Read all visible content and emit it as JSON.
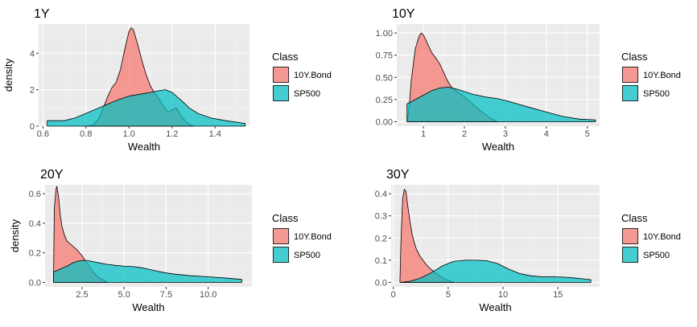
{
  "colors": {
    "panel_bg": "#EBEBEB",
    "grid_major": "#FFFFFF",
    "grid_minor": "#F5F5F5",
    "bond": "#F8766D",
    "sp500": "#00BFC4",
    "outline": "#000000",
    "text": "#000000",
    "tick_text": "#4D4D4D"
  },
  "chart_data": [
    {
      "type": "area",
      "title": "1Y",
      "xlabel": "Wealth",
      "ylabel": "density",
      "xlim": [
        0.58,
        1.56
      ],
      "ylim": [
        0,
        5.6
      ],
      "xticks": [
        0.6,
        0.8,
        1.0,
        1.2,
        1.4
      ],
      "xtick_labels": [
        "0.6",
        "0.8",
        "1.0",
        "1.2",
        "1.4"
      ],
      "yticks": [
        0,
        2,
        4
      ],
      "ytick_labels": [
        "0",
        "2",
        "4"
      ],
      "legend": {
        "title": "Class",
        "entries": [
          "10Y.Bond",
          "SP500"
        ],
        "position": "right"
      },
      "series": [
        {
          "name": "10Y.Bond",
          "color": "#F8766D",
          "points": [
            [
              0.8,
              0.0
            ],
            [
              0.83,
              0.05
            ],
            [
              0.86,
              0.4
            ],
            [
              0.88,
              1.0
            ],
            [
              0.9,
              1.6
            ],
            [
              0.92,
              2.1
            ],
            [
              0.94,
              2.4
            ],
            [
              0.96,
              3.1
            ],
            [
              0.98,
              4.2
            ],
            [
              1.0,
              5.2
            ],
            [
              1.01,
              5.4
            ],
            [
              1.02,
              5.3
            ],
            [
              1.04,
              4.5
            ],
            [
              1.06,
              3.6
            ],
            [
              1.08,
              2.8
            ],
            [
              1.1,
              2.2
            ],
            [
              1.12,
              1.8
            ],
            [
              1.14,
              1.5
            ],
            [
              1.16,
              1.1
            ],
            [
              1.18,
              0.75
            ],
            [
              1.2,
              0.9
            ],
            [
              1.22,
              1.0
            ],
            [
              1.24,
              0.6
            ],
            [
              1.26,
              0.3
            ],
            [
              1.28,
              0.1
            ],
            [
              1.3,
              0.0
            ]
          ]
        },
        {
          "name": "SP500",
          "color": "#00BFC4",
          "points": [
            [
              0.62,
              0.3
            ],
            [
              0.7,
              0.3
            ],
            [
              0.75,
              0.45
            ],
            [
              0.8,
              0.7
            ],
            [
              0.85,
              0.95
            ],
            [
              0.9,
              1.2
            ],
            [
              0.95,
              1.45
            ],
            [
              1.0,
              1.65
            ],
            [
              1.05,
              1.75
            ],
            [
              1.1,
              1.85
            ],
            [
              1.14,
              1.95
            ],
            [
              1.17,
              2.0
            ],
            [
              1.2,
              1.85
            ],
            [
              1.24,
              1.45
            ],
            [
              1.28,
              1.0
            ],
            [
              1.32,
              0.7
            ],
            [
              1.38,
              0.45
            ],
            [
              1.45,
              0.3
            ],
            [
              1.54,
              0.15
            ]
          ]
        }
      ]
    },
    {
      "type": "area",
      "title": "10Y",
      "xlabel": "Wealth",
      "ylabel": "",
      "xlim": [
        0.35,
        5.3
      ],
      "ylim": [
        -0.05,
        1.1
      ],
      "xticks": [
        1,
        2,
        3,
        4,
        5
      ],
      "xtick_labels": [
        "1",
        "2",
        "3",
        "4",
        "5"
      ],
      "yticks": [
        0,
        0.25,
        0.5,
        0.75,
        1.0
      ],
      "ytick_labels": [
        "0.00",
        "0.25",
        "0.50",
        "0.75",
        "1.00"
      ],
      "legend": {
        "title": "Class",
        "entries": [
          "10Y.Bond",
          "SP500"
        ],
        "position": "right"
      },
      "series": [
        {
          "name": "10Y.Bond",
          "color": "#F8766D",
          "points": [
            [
              0.6,
              0.0
            ],
            [
              0.65,
              0.15
            ],
            [
              0.7,
              0.45
            ],
            [
              0.8,
              0.82
            ],
            [
              0.9,
              0.97
            ],
            [
              0.95,
              1.0
            ],
            [
              1.0,
              0.98
            ],
            [
              1.1,
              0.88
            ],
            [
              1.2,
              0.78
            ],
            [
              1.3,
              0.72
            ],
            [
              1.4,
              0.65
            ],
            [
              1.5,
              0.55
            ],
            [
              1.6,
              0.45
            ],
            [
              1.7,
              0.38
            ],
            [
              1.85,
              0.33
            ],
            [
              2.0,
              0.28
            ],
            [
              2.2,
              0.2
            ],
            [
              2.4,
              0.12
            ],
            [
              2.6,
              0.05
            ],
            [
              2.8,
              0.0
            ]
          ]
        },
        {
          "name": "SP500",
          "color": "#00BFC4",
          "points": [
            [
              0.6,
              0.2
            ],
            [
              0.8,
              0.25
            ],
            [
              1.0,
              0.3
            ],
            [
              1.2,
              0.35
            ],
            [
              1.4,
              0.38
            ],
            [
              1.6,
              0.39
            ],
            [
              1.8,
              0.37
            ],
            [
              2.0,
              0.34
            ],
            [
              2.2,
              0.31
            ],
            [
              2.5,
              0.28
            ],
            [
              2.8,
              0.26
            ],
            [
              3.0,
              0.24
            ],
            [
              3.3,
              0.2
            ],
            [
              3.6,
              0.16
            ],
            [
              4.0,
              0.11
            ],
            [
              4.4,
              0.06
            ],
            [
              4.8,
              0.03
            ],
            [
              5.2,
              0.02
            ]
          ]
        }
      ]
    },
    {
      "type": "area",
      "title": "20Y",
      "xlabel": "Wealth",
      "ylabel": "density",
      "xlim": [
        0.3,
        12.6
      ],
      "ylim": [
        -0.03,
        0.66
      ],
      "xticks": [
        2.5,
        5.0,
        7.5,
        10.0
      ],
      "xtick_labels": [
        "2.5",
        "5.0",
        "7.5",
        "10.0"
      ],
      "yticks": [
        0,
        0.2,
        0.4,
        0.6
      ],
      "ytick_labels": [
        "0.0",
        "0.2",
        "0.4",
        "0.6"
      ],
      "legend": {
        "title": "Class",
        "entries": [
          "10Y.Bond",
          "SP500"
        ],
        "position": "right"
      },
      "series": [
        {
          "name": "10Y.Bond",
          "color": "#F8766D",
          "points": [
            [
              0.8,
              0.0
            ],
            [
              0.85,
              0.5
            ],
            [
              0.95,
              0.63
            ],
            [
              1.0,
              0.65
            ],
            [
              1.1,
              0.58
            ],
            [
              1.2,
              0.46
            ],
            [
              1.3,
              0.38
            ],
            [
              1.45,
              0.32
            ],
            [
              1.6,
              0.28
            ],
            [
              1.8,
              0.26
            ],
            [
              2.0,
              0.24
            ],
            [
              2.2,
              0.22
            ],
            [
              2.5,
              0.18
            ],
            [
              2.8,
              0.13
            ],
            [
              3.1,
              0.08
            ],
            [
              3.4,
              0.04
            ],
            [
              3.7,
              0.02
            ],
            [
              4.0,
              0.0
            ]
          ]
        },
        {
          "name": "SP500",
          "color": "#00BFC4",
          "points": [
            [
              0.8,
              0.07
            ],
            [
              1.2,
              0.09
            ],
            [
              1.6,
              0.11
            ],
            [
              2.0,
              0.135
            ],
            [
              2.4,
              0.148
            ],
            [
              2.8,
              0.148
            ],
            [
              3.2,
              0.14
            ],
            [
              3.6,
              0.13
            ],
            [
              4.0,
              0.122
            ],
            [
              4.5,
              0.115
            ],
            [
              5.0,
              0.11
            ],
            [
              5.5,
              0.107
            ],
            [
              6.0,
              0.1
            ],
            [
              6.5,
              0.088
            ],
            [
              7.0,
              0.075
            ],
            [
              7.5,
              0.064
            ],
            [
              8.0,
              0.056
            ],
            [
              9.0,
              0.045
            ],
            [
              10.0,
              0.038
            ],
            [
              11.0,
              0.03
            ],
            [
              12.0,
              0.02
            ]
          ]
        }
      ]
    },
    {
      "type": "area",
      "title": "30Y",
      "xlabel": "Wealth",
      "ylabel": "",
      "xlim": [
        -0.2,
        18.8
      ],
      "ylim": [
        -0.02,
        0.44
      ],
      "xticks": [
        0,
        5,
        10,
        15
      ],
      "xtick_labels": [
        "0",
        "5",
        "10",
        "15"
      ],
      "yticks": [
        0,
        0.1,
        0.2,
        0.3,
        0.4
      ],
      "ytick_labels": [
        "0.0",
        "0.1",
        "0.2",
        "0.3",
        "0.4"
      ],
      "legend": {
        "title": "Class",
        "entries": [
          "10Y.Bond",
          "SP500"
        ],
        "position": "right"
      },
      "series": [
        {
          "name": "10Y.Bond",
          "color": "#F8766D",
          "points": [
            [
              0.6,
              0.0
            ],
            [
              0.7,
              0.2
            ],
            [
              0.85,
              0.38
            ],
            [
              1.0,
              0.42
            ],
            [
              1.15,
              0.41
            ],
            [
              1.3,
              0.35
            ],
            [
              1.5,
              0.28
            ],
            [
              1.7,
              0.22
            ],
            [
              1.9,
              0.18
            ],
            [
              2.1,
              0.15
            ],
            [
              2.4,
              0.12
            ],
            [
              2.7,
              0.1
            ],
            [
              3.0,
              0.08
            ],
            [
              3.4,
              0.06
            ],
            [
              3.8,
              0.045
            ],
            [
              4.2,
              0.03
            ],
            [
              4.6,
              0.018
            ],
            [
              5.0,
              0.01
            ],
            [
              5.5,
              0.0
            ]
          ]
        },
        {
          "name": "SP500",
          "color": "#00BFC4",
          "points": [
            [
              0.6,
              0.0
            ],
            [
              1.5,
              0.005
            ],
            [
              2.5,
              0.02
            ],
            [
              3.5,
              0.045
            ],
            [
              4.5,
              0.075
            ],
            [
              5.5,
              0.095
            ],
            [
              6.5,
              0.1
            ],
            [
              7.5,
              0.1
            ],
            [
              8.5,
              0.098
            ],
            [
              9.5,
              0.085
            ],
            [
              10.5,
              0.06
            ],
            [
              11.5,
              0.04
            ],
            [
              12.5,
              0.03
            ],
            [
              13.5,
              0.025
            ],
            [
              14.5,
              0.025
            ],
            [
              15.5,
              0.024
            ],
            [
              16.5,
              0.02
            ],
            [
              17.5,
              0.015
            ],
            [
              18.0,
              0.012
            ]
          ]
        }
      ]
    }
  ]
}
